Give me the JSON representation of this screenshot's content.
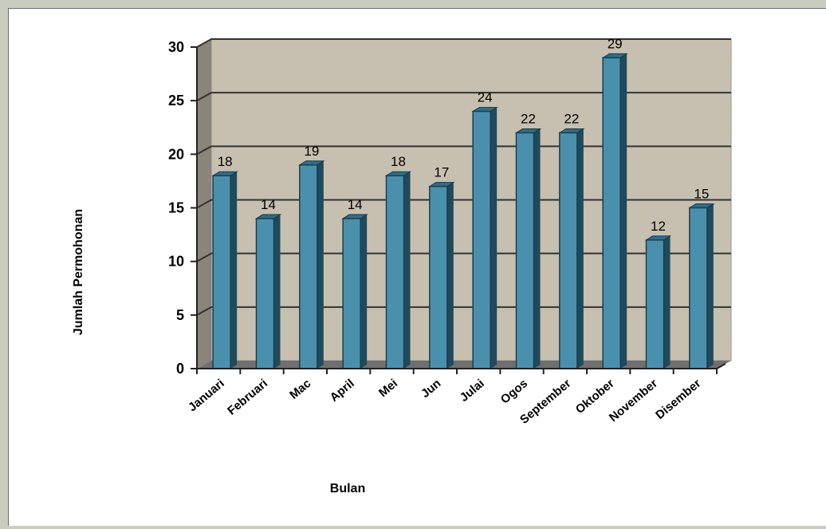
{
  "chart_data": {
    "type": "bar",
    "title": "",
    "xlabel": "Bulan",
    "ylabel": "Jumlah Permohonan",
    "categories": [
      "Januari",
      "Februari",
      "Mac",
      "April",
      "Mei",
      "Jun",
      "Julai",
      "Ogos",
      "September",
      "Oktober",
      "November",
      "Disember"
    ],
    "values": [
      18,
      14,
      19,
      14,
      18,
      17,
      24,
      22,
      22,
      29,
      12,
      15
    ],
    "ylim": [
      0,
      30
    ],
    "yticks": [
      0,
      5,
      10,
      15,
      20,
      25,
      30
    ],
    "grid": true,
    "legend": "none",
    "colors": {
      "bar_front": "#4a90ad",
      "bar_side": "#1f4a5c",
      "bar_top": "#2e6e88",
      "plot_wall": "#c7bfb0",
      "plot_side_wall": "#8a847a",
      "floor": "#6f6f6f",
      "gridline": "#333333"
    }
  }
}
